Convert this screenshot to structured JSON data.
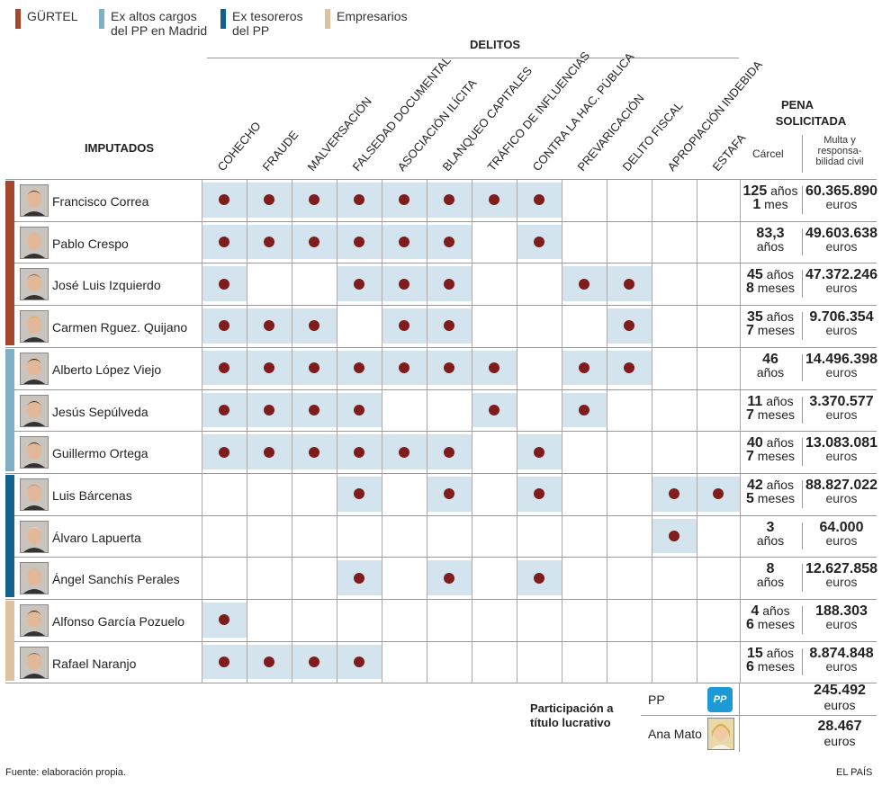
{
  "legend": [
    {
      "label": "GÜRTEL",
      "color": "#a5472d"
    },
    {
      "label": "Ex altos cargos\ndel PP en Madrid",
      "color": "#7fb0c6"
    },
    {
      "label": "Ex tesoreros\ndel PP",
      "color": "#13608c"
    },
    {
      "label": "Empresarios",
      "color": "#ddc2a0"
    }
  ],
  "headers": {
    "delitos": "DELITOS",
    "imputados": "IMPUTADOS",
    "pena_line1": "PENA",
    "pena_line2": "SOLICITADA",
    "carcel": "Cárcel",
    "multa": "Multa y responsa-bilidad civil"
  },
  "chart_data": {
    "type": "table",
    "columns": [
      "COHECHO",
      "FRAUDE",
      "MALVERSACIÓN",
      "FALSEDAD DOCUMENTAL",
      "ASOCIACIÓN ILÍCITA",
      "BLANQUEO CAPITALES",
      "TRÁFICO DE INFLUENCIAS",
      "CONTRA LA HAC. PÚBLICA",
      "PREVARICACIÓN",
      "DELITO FISCAL",
      "APROPIACIÓN INDEBIDA",
      "ESTAFA"
    ],
    "rows": [
      {
        "name": "Francisco Correa",
        "group": 0,
        "crimes": [
          1,
          1,
          1,
          1,
          1,
          1,
          1,
          1,
          0,
          0,
          0,
          0
        ],
        "carcel_num": "125",
        "carcel_unit": " años",
        "carcel_num2": "1",
        "carcel_unit2": " mes",
        "multa": "60.365.890",
        "multa_unit": "euros"
      },
      {
        "name": "Pablo Crespo",
        "group": 0,
        "crimes": [
          1,
          1,
          1,
          1,
          1,
          1,
          0,
          1,
          0,
          0,
          0,
          0
        ],
        "carcel_num": "83,3",
        "carcel_unit": "",
        "carcel_num2": "",
        "carcel_unit2": "años",
        "multa": "49.603.638",
        "multa_unit": "euros"
      },
      {
        "name": "José Luis Izquierdo",
        "group": 0,
        "crimes": [
          1,
          0,
          0,
          1,
          1,
          1,
          0,
          0,
          1,
          1,
          0,
          0
        ],
        "carcel_num": "45",
        "carcel_unit": " años",
        "carcel_num2": "8",
        "carcel_unit2": " meses",
        "multa": "47.372.246",
        "multa_unit": "euros"
      },
      {
        "name": "Carmen Rguez. Quijano",
        "group": 0,
        "crimes": [
          1,
          1,
          1,
          0,
          1,
          1,
          0,
          0,
          0,
          1,
          0,
          0
        ],
        "carcel_num": "35",
        "carcel_unit": " años",
        "carcel_num2": "7",
        "carcel_unit2": " meses",
        "multa": "9.706.354",
        "multa_unit": "euros"
      },
      {
        "name": "Alberto López Viejo",
        "group": 1,
        "crimes": [
          1,
          1,
          1,
          1,
          1,
          1,
          1,
          0,
          1,
          1,
          0,
          0
        ],
        "carcel_num": "46",
        "carcel_unit": "",
        "carcel_num2": "",
        "carcel_unit2": "años",
        "multa": "14.496.398",
        "multa_unit": "euros"
      },
      {
        "name": "Jesús Sepúlveda",
        "group": 1,
        "crimes": [
          1,
          1,
          1,
          1,
          0,
          0,
          1,
          0,
          1,
          0,
          0,
          0
        ],
        "carcel_num": "11",
        "carcel_unit": " años",
        "carcel_num2": "7",
        "carcel_unit2": " meses",
        "multa": "3.370.577",
        "multa_unit": "euros"
      },
      {
        "name": "Guillermo Ortega",
        "group": 1,
        "crimes": [
          1,
          1,
          1,
          1,
          1,
          1,
          0,
          1,
          0,
          0,
          0,
          0
        ],
        "carcel_num": "40",
        "carcel_unit": " años",
        "carcel_num2": "7",
        "carcel_unit2": " meses",
        "multa": "13.083.081",
        "multa_unit": "euros"
      },
      {
        "name": "Luis Bárcenas",
        "group": 2,
        "crimes": [
          0,
          0,
          0,
          1,
          0,
          1,
          0,
          1,
          0,
          0,
          1,
          1
        ],
        "carcel_num": "42",
        "carcel_unit": " años",
        "carcel_num2": "5",
        "carcel_unit2": " meses",
        "multa": "88.827.022",
        "multa_unit": "euros"
      },
      {
        "name": "Álvaro Lapuerta",
        "group": 2,
        "crimes": [
          0,
          0,
          0,
          0,
          0,
          0,
          0,
          0,
          0,
          0,
          1,
          0
        ],
        "carcel_num": "3",
        "carcel_unit": "",
        "carcel_num2": "",
        "carcel_unit2": "años",
        "multa": "64.000",
        "multa_unit": "euros"
      },
      {
        "name": "Ángel Sanchís Perales",
        "group": 2,
        "crimes": [
          0,
          0,
          0,
          1,
          0,
          1,
          0,
          1,
          0,
          0,
          0,
          0
        ],
        "carcel_num": "8",
        "carcel_unit": "",
        "carcel_num2": "",
        "carcel_unit2": "años",
        "multa": "12.627.858",
        "multa_unit": "euros"
      },
      {
        "name": "Alfonso García Pozuelo",
        "group": 3,
        "crimes": [
          1,
          0,
          0,
          0,
          0,
          0,
          0,
          0,
          0,
          0,
          0,
          0
        ],
        "carcel_num": "4",
        "carcel_unit": " años",
        "carcel_num2": "6",
        "carcel_unit2": " meses",
        "multa": "188.303",
        "multa_unit": "euros"
      },
      {
        "name": "Rafael Naranjo",
        "group": 3,
        "crimes": [
          1,
          1,
          1,
          1,
          0,
          0,
          0,
          0,
          0,
          0,
          0,
          0
        ],
        "carcel_num": "15",
        "carcel_unit": " años",
        "carcel_num2": "6",
        "carcel_unit2": " meses",
        "multa": "8.874.848",
        "multa_unit": "euros"
      }
    ]
  },
  "lucrativo": {
    "label_line1": "Participación a",
    "label_line2": "título lucrativo",
    "items": [
      {
        "name": "PP",
        "logo": "pp-logo-icon",
        "amount": "245.492",
        "unit": "euros"
      },
      {
        "name": "Ana Mato",
        "logo": "portrait-icon",
        "amount": "28.467",
        "unit": "euros"
      }
    ],
    "pp_logo_text": "PP"
  },
  "footer": {
    "source": "Fuente: elaboración propia.",
    "brand": "EL PAÍS"
  },
  "colors": {
    "dot": "#7f1d1d",
    "cell_highlight": "#d3e4ee"
  }
}
